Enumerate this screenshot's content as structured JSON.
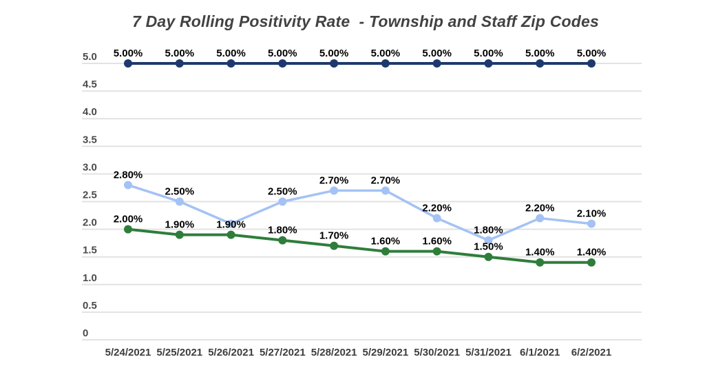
{
  "title": "7 Day Rolling Positivity Rate  - Township and Staff Zip Codes",
  "chart_data": {
    "type": "line",
    "title": "7 Day Rolling Positivity Rate  - Township and Staff Zip Codes",
    "categories": [
      "5/24/2021",
      "5/25/2021",
      "5/26/2021",
      "5/27/2021",
      "5/28/2021",
      "5/29/2021",
      "5/30/2021",
      "5/31/2021",
      "6/1/2021",
      "6/2/2021"
    ],
    "y_axis": {
      "tick_labels": [
        "0",
        "0.5",
        "1.0",
        "1.5",
        "2.0",
        "2.5",
        "3.0",
        "3.5",
        "4.0",
        "4.5",
        "5.0"
      ],
      "min": 0,
      "max": 5,
      "grid": true
    },
    "legend": "none",
    "series": [
      {
        "name": "threshold-5-percent",
        "color": "#1e3a6d",
        "marker_color": "#1e3a6d",
        "line_width": 4,
        "values": [
          5.0,
          5.0,
          5.0,
          5.0,
          5.0,
          5.0,
          5.0,
          5.0,
          5.0,
          5.0
        ],
        "labels": [
          "5.00%",
          "5.00%",
          "5.00%",
          "5.00%",
          "5.00%",
          "5.00%",
          "5.00%",
          "5.00%",
          "5.00%",
          "5.00%"
        ]
      },
      {
        "name": "township-zip-codes",
        "color": "#a4c2f4",
        "marker_color": "#a4c2f4",
        "line_width": 3.5,
        "values": [
          2.8,
          2.5,
          2.1,
          2.5,
          2.7,
          2.7,
          2.2,
          1.8,
          2.2,
          2.1
        ],
        "labels": [
          "2.80%",
          "2.50%",
          "",
          "2.50%",
          "2.70%",
          "2.70%",
          "2.20%",
          "1.80%",
          "2.20%",
          "2.10%"
        ]
      },
      {
        "name": "staff-zip-codes",
        "color": "#2f7d3b",
        "marker_color": "#2f7d3b",
        "line_width": 4,
        "values": [
          2.0,
          1.9,
          1.9,
          1.8,
          1.7,
          1.6,
          1.6,
          1.5,
          1.4,
          1.4
        ],
        "labels": [
          "2.00%",
          "1.90%",
          "1.90%",
          "1.80%",
          "1.70%",
          "1.60%",
          "1.60%",
          "1.50%",
          "1.40%",
          "1.40%"
        ]
      }
    ]
  }
}
